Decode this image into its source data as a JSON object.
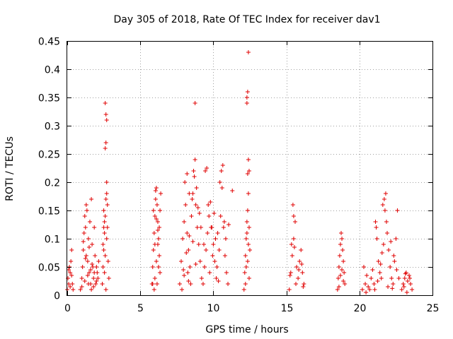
{
  "chart_data": {
    "type": "scatter",
    "title": "Day 305 of 2018, Rate Of TEC Index for receiver dav1",
    "xlabel": "GPS time / hours",
    "ylabel": "ROTI / TECUs",
    "xlim": [
      0,
      25
    ],
    "ylim": [
      0,
      0.45
    ],
    "xticks": [
      0,
      5,
      10,
      15,
      20,
      25
    ],
    "xtick_labels": [
      "0",
      "5",
      "10",
      "15",
      "20",
      "25"
    ],
    "yticks": [
      0,
      0.05,
      0.1,
      0.15,
      0.2,
      0.25,
      0.3,
      0.35,
      0.4,
      0.45
    ],
    "ytick_labels": [
      "0",
      "0.05",
      "0.1",
      "0.15",
      "0.2",
      "0.25",
      "0.3",
      "0.35",
      "0.4",
      "0.45"
    ],
    "grid": true,
    "marker": "+",
    "marker_color": "#e00000",
    "series": [
      {
        "name": "ROTI",
        "points": [
          [
            0.0,
            0.01
          ],
          [
            0.05,
            0.03
          ],
          [
            0.1,
            0.02
          ],
          [
            0.15,
            0.05
          ],
          [
            0.2,
            0.04
          ],
          [
            0.25,
            0.06
          ],
          [
            0.3,
            0.08
          ],
          [
            0.35,
            0.02
          ],
          [
            0.4,
            0.01
          ],
          [
            0.2,
            0.015
          ],
          [
            0.1,
            0.045
          ],
          [
            0.3,
            0.035
          ],
          [
            0.9,
            0.01
          ],
          [
            1.0,
            0.03
          ],
          [
            1.05,
            0.05
          ],
          [
            1.1,
            0.08
          ],
          [
            1.15,
            0.11
          ],
          [
            1.2,
            0.14
          ],
          [
            1.25,
            0.12
          ],
          [
            1.3,
            0.16
          ],
          [
            1.35,
            0.15
          ],
          [
            1.4,
            0.06
          ],
          [
            1.45,
            0.1
          ],
          [
            1.5,
            0.04
          ],
          [
            1.55,
            0.13
          ],
          [
            1.6,
            0.02
          ],
          [
            1.65,
            0.17
          ],
          [
            1.7,
            0.09
          ],
          [
            1.75,
            0.05
          ],
          [
            1.8,
            0.03
          ],
          [
            1.85,
            0.12
          ],
          [
            1.9,
            0.07
          ],
          [
            1.95,
            0.02
          ],
          [
            2.0,
            0.05
          ],
          [
            2.05,
            0.04
          ],
          [
            2.1,
            0.03
          ],
          [
            2.15,
            0.06
          ],
          [
            1.0,
            0.015
          ],
          [
            1.2,
            0.025
          ],
          [
            1.4,
            0.035
          ],
          [
            1.6,
            0.045
          ],
          [
            1.8,
            0.015
          ],
          [
            2.0,
            0.025
          ],
          [
            1.3,
            0.07
          ],
          [
            1.5,
            0.085
          ],
          [
            1.7,
            0.055
          ],
          [
            1.1,
            0.095
          ],
          [
            1.25,
            0.065
          ],
          [
            1.45,
            0.02
          ],
          [
            1.65,
            0.01
          ],
          [
            1.85,
            0.04
          ],
          [
            2.4,
            0.02
          ],
          [
            2.45,
            0.05
          ],
          [
            2.5,
            0.08
          ],
          [
            2.55,
            0.11
          ],
          [
            2.6,
            0.14
          ],
          [
            2.65,
            0.17
          ],
          [
            2.7,
            0.2
          ],
          [
            2.75,
            0.16
          ],
          [
            2.6,
            0.26
          ],
          [
            2.65,
            0.27
          ],
          [
            2.7,
            0.31
          ],
          [
            2.65,
            0.32
          ],
          [
            2.6,
            0.34
          ],
          [
            2.55,
            0.13
          ],
          [
            2.5,
            0.15
          ],
          [
            2.45,
            0.09
          ],
          [
            2.75,
            0.12
          ],
          [
            2.8,
            0.06
          ],
          [
            2.85,
            0.03
          ],
          [
            2.7,
            0.1
          ],
          [
            2.55,
            0.04
          ],
          [
            2.6,
            0.07
          ],
          [
            2.65,
            0.01
          ],
          [
            2.5,
            0.12
          ],
          [
            2.7,
            0.18
          ],
          [
            5.8,
            0.02
          ],
          [
            5.85,
            0.05
          ],
          [
            5.9,
            0.08
          ],
          [
            5.95,
            0.11
          ],
          [
            6.0,
            0.14
          ],
          [
            6.05,
            0.17
          ],
          [
            6.1,
            0.19
          ],
          [
            6.15,
            0.16
          ],
          [
            6.2,
            0.13
          ],
          [
            6.25,
            0.1
          ],
          [
            6.3,
            0.07
          ],
          [
            6.35,
            0.04
          ],
          [
            6.0,
            0.03
          ],
          [
            6.1,
            0.06
          ],
          [
            6.2,
            0.09
          ],
          [
            6.3,
            0.12
          ],
          [
            5.9,
            0.15
          ],
          [
            6.05,
            0.185
          ],
          [
            6.15,
            0.02
          ],
          [
            6.25,
            0.05
          ],
          [
            5.95,
            0.01
          ],
          [
            6.35,
            0.15
          ],
          [
            6.4,
            0.18
          ],
          [
            6.0,
            0.09
          ],
          [
            6.2,
            0.115
          ],
          [
            6.1,
            0.135
          ],
          [
            5.85,
            0.02
          ],
          [
            7.7,
            0.02
          ],
          [
            7.8,
            0.06
          ],
          [
            7.9,
            0.1
          ],
          [
            8.0,
            0.13
          ],
          [
            8.1,
            0.16
          ],
          [
            8.2,
            0.11
          ],
          [
            8.3,
            0.08
          ],
          [
            8.4,
            0.05
          ],
          [
            8.5,
            0.14
          ],
          [
            8.6,
            0.18
          ],
          [
            8.7,
            0.21
          ],
          [
            8.75,
            0.24
          ],
          [
            8.8,
            0.16
          ],
          [
            8.9,
            0.12
          ],
          [
            9.0,
            0.09
          ],
          [
            9.1,
            0.06
          ],
          [
            9.2,
            0.03
          ],
          [
            8.2,
            0.215
          ],
          [
            8.35,
            0.18
          ],
          [
            8.05,
            0.2
          ],
          [
            8.65,
            0.22
          ],
          [
            8.55,
            0.17
          ],
          [
            8.45,
            0.02
          ],
          [
            8.25,
            0.04
          ],
          [
            7.85,
            0.01
          ],
          [
            8.0,
            0.035
          ],
          [
            8.15,
            0.075
          ],
          [
            8.35,
            0.105
          ],
          [
            8.6,
            0.095
          ],
          [
            8.8,
            0.055
          ],
          [
            9.05,
            0.145
          ],
          [
            9.15,
            0.12
          ],
          [
            8.75,
            0.34
          ],
          [
            8.85,
            0.19
          ],
          [
            8.95,
            0.155
          ],
          [
            7.95,
            0.045
          ],
          [
            8.3,
            0.025
          ],
          [
            9.3,
            0.02
          ],
          [
            9.4,
            0.05
          ],
          [
            9.5,
            0.08
          ],
          [
            9.6,
            0.11
          ],
          [
            9.7,
            0.14
          ],
          [
            9.8,
            0.165
          ],
          [
            9.9,
            0.12
          ],
          [
            10.0,
            0.09
          ],
          [
            10.1,
            0.06
          ],
          [
            10.2,
            0.03
          ],
          [
            10.3,
            0.11
          ],
          [
            10.4,
            0.08
          ],
          [
            10.5,
            0.14
          ],
          [
            10.6,
            0.19
          ],
          [
            10.65,
            0.23
          ],
          [
            10.7,
            0.12
          ],
          [
            10.8,
            0.07
          ],
          [
            10.9,
            0.04
          ],
          [
            11.0,
            0.02
          ],
          [
            10.55,
            0.22
          ],
          [
            10.45,
            0.2
          ],
          [
            9.55,
            0.225
          ],
          [
            9.45,
            0.22
          ],
          [
            9.65,
            0.16
          ],
          [
            9.85,
            0.12
          ],
          [
            10.05,
            0.145
          ],
          [
            10.25,
            0.05
          ],
          [
            10.35,
            0.025
          ],
          [
            9.75,
            0.04
          ],
          [
            9.95,
            0.07
          ],
          [
            10.15,
            0.1
          ],
          [
            10.75,
            0.13
          ],
          [
            10.85,
            0.1
          ],
          [
            11.05,
            0.125
          ],
          [
            11.3,
            0.185
          ],
          [
            9.35,
            0.09
          ],
          [
            12.1,
            0.01
          ],
          [
            12.15,
            0.04
          ],
          [
            12.2,
            0.07
          ],
          [
            12.25,
            0.1
          ],
          [
            12.3,
            0.13
          ],
          [
            12.35,
            0.15
          ],
          [
            12.4,
            0.18
          ],
          [
            12.45,
            0.22
          ],
          [
            12.4,
            0.24
          ],
          [
            12.35,
            0.215
          ],
          [
            12.3,
            0.34
          ],
          [
            12.35,
            0.36
          ],
          [
            12.3,
            0.35
          ],
          [
            12.4,
            0.43
          ],
          [
            12.45,
            0.12
          ],
          [
            12.5,
            0.08
          ],
          [
            12.25,
            0.05
          ],
          [
            12.2,
            0.02
          ],
          [
            12.4,
            0.09
          ],
          [
            12.3,
            0.11
          ],
          [
            12.35,
            0.06
          ],
          [
            12.45,
            0.03
          ],
          [
            15.2,
            0.01
          ],
          [
            15.3,
            0.04
          ],
          [
            15.4,
            0.07
          ],
          [
            15.5,
            0.1
          ],
          [
            15.6,
            0.13
          ],
          [
            15.45,
            0.16
          ],
          [
            15.5,
            0.14
          ],
          [
            15.7,
            0.05
          ],
          [
            15.8,
            0.03
          ],
          [
            15.9,
            0.06
          ],
          [
            16.0,
            0.08
          ],
          [
            16.1,
            0.04
          ],
          [
            16.2,
            0.02
          ],
          [
            15.35,
            0.09
          ],
          [
            15.65,
            0.02
          ],
          [
            15.85,
            0.045
          ],
          [
            16.05,
            0.055
          ],
          [
            15.55,
            0.085
          ],
          [
            15.25,
            0.035
          ],
          [
            16.15,
            0.015
          ],
          [
            18.5,
            0.01
          ],
          [
            18.55,
            0.03
          ],
          [
            18.6,
            0.05
          ],
          [
            18.65,
            0.07
          ],
          [
            18.7,
            0.09
          ],
          [
            18.75,
            0.11
          ],
          [
            18.8,
            0.1
          ],
          [
            18.85,
            0.08
          ],
          [
            18.9,
            0.06
          ],
          [
            18.95,
            0.04
          ],
          [
            19.0,
            0.02
          ],
          [
            18.6,
            0.015
          ],
          [
            18.8,
            0.045
          ],
          [
            18.7,
            0.035
          ],
          [
            18.9,
            0.025
          ],
          [
            20.2,
            0.01
          ],
          [
            20.4,
            0.02
          ],
          [
            20.6,
            0.015
          ],
          [
            20.8,
            0.03
          ],
          [
            21.0,
            0.02
          ],
          [
            21.1,
            0.13
          ],
          [
            21.15,
            0.12
          ],
          [
            21.2,
            0.1
          ],
          [
            21.3,
            0.06
          ],
          [
            21.4,
            0.04
          ],
          [
            21.5,
            0.03
          ],
          [
            21.6,
            0.16
          ],
          [
            21.7,
            0.17
          ],
          [
            21.75,
            0.15
          ],
          [
            21.8,
            0.18
          ],
          [
            21.85,
            0.13
          ],
          [
            21.9,
            0.11
          ],
          [
            22.0,
            0.08
          ],
          [
            22.1,
            0.05
          ],
          [
            22.2,
            0.03
          ],
          [
            22.3,
            0.02
          ],
          [
            22.4,
            0.06
          ],
          [
            22.5,
            0.1
          ],
          [
            22.6,
            0.15
          ],
          [
            22.7,
            0.03
          ],
          [
            20.3,
            0.05
          ],
          [
            20.5,
            0.035
          ],
          [
            20.7,
            0.01
          ],
          [
            20.9,
            0.045
          ],
          [
            21.25,
            0.025
          ],
          [
            21.45,
            0.055
          ],
          [
            21.65,
            0.09
          ],
          [
            21.95,
            0.015
          ],
          [
            22.15,
            0.095
          ],
          [
            22.35,
            0.07
          ],
          [
            22.55,
            0.045
          ],
          [
            21.05,
            0.01
          ],
          [
            20.45,
            0.005
          ],
          [
            21.55,
            0.075
          ],
          [
            22.25,
            0.012
          ],
          [
            22.9,
            0.01
          ],
          [
            23.0,
            0.02
          ],
          [
            23.1,
            0.03
          ],
          [
            23.2,
            0.04
          ],
          [
            23.3,
            0.025
          ],
          [
            23.4,
            0.035
          ],
          [
            23.5,
            0.02
          ],
          [
            23.6,
            0.01
          ],
          [
            23.05,
            0.015
          ],
          [
            23.25,
            0.005
          ],
          [
            23.45,
            0.03
          ],
          [
            23.15,
            0.038
          ]
        ]
      }
    ]
  }
}
